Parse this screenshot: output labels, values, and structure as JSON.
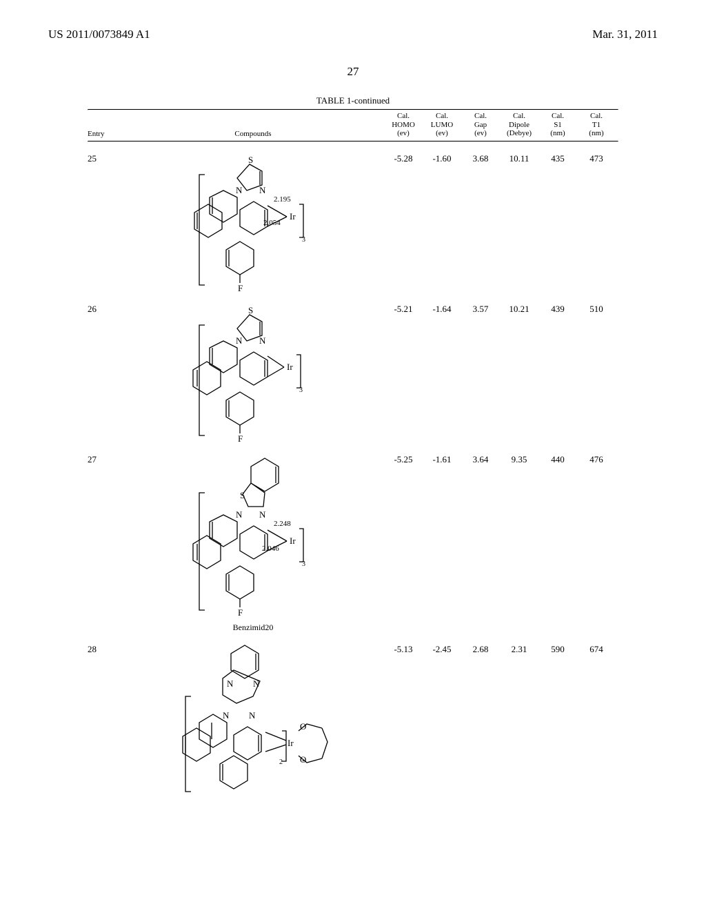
{
  "header": {
    "left": "US 2011/0073849 A1",
    "right": "Mar. 31, 2011"
  },
  "page_number": "27",
  "table": {
    "caption": "TABLE 1-continued",
    "columns": {
      "entry": "Entry",
      "compounds": "Compounds",
      "homo_l1": "Cal.",
      "homo_l2": "HOMO",
      "homo_l3": "(ev)",
      "lumo_l1": "Cal.",
      "lumo_l2": "LUMO",
      "lumo_l3": "(ev)",
      "gap_l1": "Cal.",
      "gap_l2": "Gap",
      "gap_l3": "(ev)",
      "dipole_l1": "Cal.",
      "dipole_l2": "Dipole",
      "dipole_l3": "(Debye)",
      "s1_l1": "Cal.",
      "s1_l2": "S1",
      "s1_l3": "(nm)",
      "t1_l1": "Cal.",
      "t1_l2": "T1",
      "t1_l3": "(nm)"
    },
    "rows": [
      {
        "entry": "25",
        "homo": "-5.28",
        "lumo": "-1.60",
        "gap": "3.68",
        "dipole": "10.11",
        "s1": "435",
        "t1": "473",
        "struct_height": 218,
        "compound_label": "",
        "struct": {
          "atoms": {
            "S": "S",
            "N1": "N",
            "N2": "N",
            "Ir": "Ir",
            "F": "F"
          },
          "bond_len1": "2.195",
          "bond_len2": "2.054",
          "subscript": "3"
        }
      },
      {
        "entry": "26",
        "homo": "-5.21",
        "lumo": "-1.64",
        "gap": "3.57",
        "dipole": "10.21",
        "s1": "439",
        "t1": "510",
        "struct_height": 218,
        "compound_label": "",
        "struct": {
          "atoms": {
            "S": "S",
            "N1": "N",
            "N2": "N",
            "Ir": "Ir",
            "F": "F"
          },
          "bond_len1": "",
          "bond_len2": "",
          "subscript": "3"
        }
      },
      {
        "entry": "27",
        "homo": "-5.25",
        "lumo": "-1.61",
        "gap": "3.64",
        "dipole": "9.35",
        "s1": "440",
        "t1": "476",
        "struct_height": 260,
        "compound_label": "Benzimid20",
        "struct": {
          "atoms": {
            "S": "S",
            "N1": "N",
            "N2": "N",
            "Ir": "Ir",
            "F": "F"
          },
          "bond_len1": "2.248",
          "bond_len2": "2.046",
          "subscript": "3"
        }
      },
      {
        "entry": "28",
        "homo": "-5.13",
        "lumo": "-2.45",
        "gap": "2.68",
        "dipole": "2.31",
        "s1": "590",
        "t1": "674",
        "struct_height": 236,
        "compound_label": "",
        "struct": {
          "atoms": {
            "N1": "N",
            "N2": "N",
            "N3": "N",
            "N4": "N",
            "Ir": "Ir",
            "O1": "O",
            "O2": "O"
          },
          "subscript": "2"
        }
      }
    ]
  }
}
